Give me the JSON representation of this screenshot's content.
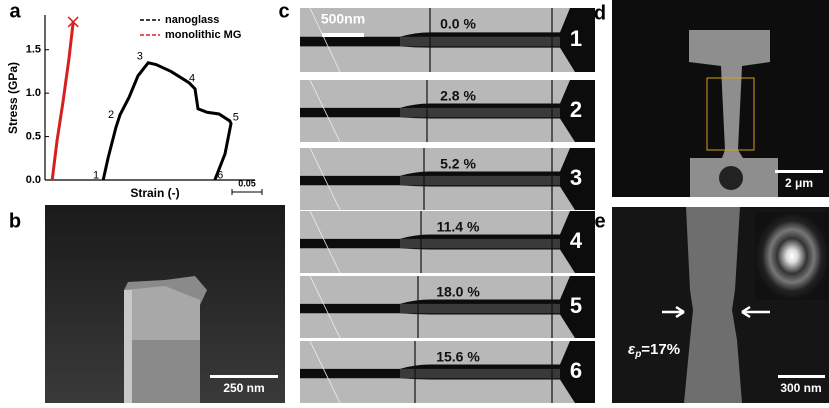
{
  "chart_data": {
    "type": "line",
    "x_label": "Strain (-)",
    "y_label": "Stress (GPa)",
    "xlim": [
      0,
      0.35
    ],
    "ylim": [
      0,
      1.9
    ],
    "yticks": [
      {
        "value": 0,
        "label": "0.0"
      },
      {
        "value": 0.5,
        "label": "0.5"
      },
      {
        "value": 1,
        "label": "1.0"
      },
      {
        "value": 1.5,
        "label": "1.5"
      }
    ],
    "scale_bar": 0.05,
    "legend": "upper right",
    "series": [
      {
        "name": "nanoglass",
        "color": "#000000",
        "x": [
          0.097,
          0.105,
          0.118,
          0.125,
          0.14,
          0.155,
          0.172,
          0.185,
          0.21,
          0.24,
          0.25,
          0.255,
          0.27,
          0.29,
          0.308,
          0.31,
          0.3,
          0.283
        ],
        "values": [
          0,
          0.25,
          0.6,
          0.75,
          0.95,
          1.2,
          1.35,
          1.33,
          1.25,
          1.12,
          1.05,
          0.82,
          0.78,
          0.76,
          0.68,
          0.65,
          0.3,
          0
        ]
      },
      {
        "name": "monolithic MG",
        "color": "#d62020",
        "x": [
          0.012,
          0.02,
          0.03,
          0.04,
          0.047
        ],
        "values": [
          0,
          0.45,
          0.9,
          1.4,
          1.82
        ]
      }
    ],
    "annotations": [
      {
        "text": "1",
        "x": 0.085,
        "y": 0.05
      },
      {
        "text": "2",
        "x": 0.11,
        "y": 0.75
      },
      {
        "text": "3",
        "x": 0.158,
        "y": 1.42
      },
      {
        "text": "4",
        "x": 0.245,
        "y": 1.17
      },
      {
        "text": "5",
        "x": 0.318,
        "y": 0.72
      },
      {
        "text": "6",
        "x": 0.292,
        "y": 0.05
      }
    ]
  },
  "panels": {
    "labels": [
      "a",
      "b",
      "c",
      "d",
      "e"
    ],
    "b_scale": "250 nm",
    "c_scale": "500nm",
    "c_frames": [
      {
        "strain": "0.0 %",
        "number": "1"
      },
      {
        "strain": "2.8 %",
        "number": "2"
      },
      {
        "strain": "5.2 %",
        "number": "3"
      },
      {
        "strain": "11.4 %",
        "number": "4"
      },
      {
        "strain": "18.0 %",
        "number": "5"
      },
      {
        "strain": "15.6 %",
        "number": "6"
      }
    ],
    "d_scale": "2 μm",
    "e_scale": "300 nm",
    "e_symbol": "ε",
    "e_sub": "p",
    "e_value": "=17%"
  }
}
